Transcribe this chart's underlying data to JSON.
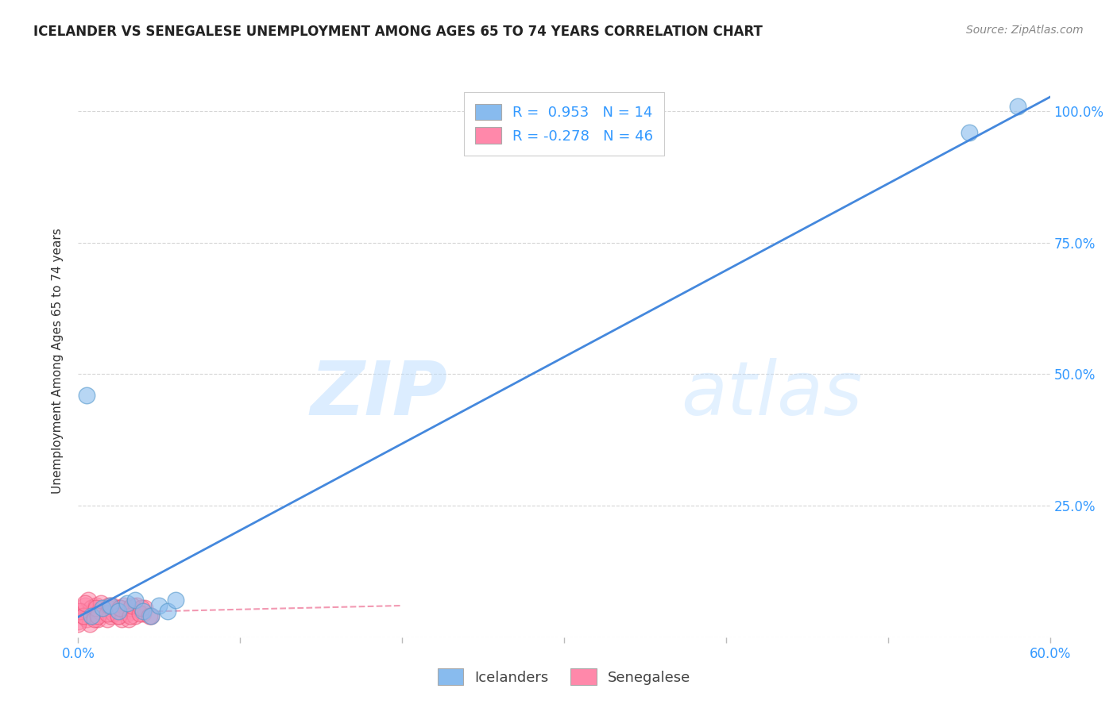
{
  "title": "ICELANDER VS SENEGALESE UNEMPLOYMENT AMONG AGES 65 TO 74 YEARS CORRELATION CHART",
  "source": "Source: ZipAtlas.com",
  "ylabel": "Unemployment Among Ages 65 to 74 years",
  "x_min": 0.0,
  "x_max": 0.6,
  "y_min": 0.0,
  "y_max": 1.05,
  "x_ticks": [
    0.0,
    0.1,
    0.2,
    0.3,
    0.4,
    0.5,
    0.6
  ],
  "x_tick_labels": [
    "0.0%",
    "",
    "",
    "",
    "",
    "",
    "60.0%"
  ],
  "y_ticks": [
    0.0,
    0.25,
    0.5,
    0.75,
    1.0
  ],
  "y_tick_labels_right": [
    "",
    "25.0%",
    "50.0%",
    "75.0%",
    "100.0%"
  ],
  "watermark_text": "ZIP",
  "watermark_text2": "atlas",
  "icelander_color": "#88BBEE",
  "icelander_edge_color": "#5599CC",
  "senegalese_color": "#FF88AA",
  "senegalese_edge_color": "#EE5577",
  "trend_icelander_color": "#4488DD",
  "trend_senegalese_color": "#EE7799",
  "R_icelander": 0.953,
  "N_icelander": 14,
  "R_senegalese": -0.278,
  "N_senegalese": 46,
  "icelander_x": [
    0.005,
    0.008,
    0.015,
    0.02,
    0.025,
    0.03,
    0.035,
    0.04,
    0.045,
    0.05,
    0.055,
    0.06,
    0.55,
    0.58
  ],
  "icelander_y": [
    0.46,
    0.04,
    0.055,
    0.06,
    0.05,
    0.065,
    0.07,
    0.05,
    0.04,
    0.06,
    0.05,
    0.07,
    0.96,
    1.01
  ],
  "senegalese_x": [
    0.0,
    0.002,
    0.003,
    0.004,
    0.005,
    0.006,
    0.007,
    0.008,
    0.01,
    0.011,
    0.012,
    0.013,
    0.014,
    0.018,
    0.019,
    0.02,
    0.021,
    0.022,
    0.025,
    0.026,
    0.027,
    0.028,
    0.03,
    0.031,
    0.032,
    0.035,
    0.036,
    0.04,
    0.041,
    0.045,
    0.0,
    0.001,
    0.003,
    0.004,
    0.01,
    0.011,
    0.012,
    0.018,
    0.019,
    0.025,
    0.026,
    0.032,
    0.033,
    0.038,
    0.039,
    0.044
  ],
  "senegalese_y": [
    0.03,
    0.05,
    0.04,
    0.06,
    0.035,
    0.07,
    0.025,
    0.055,
    0.04,
    0.06,
    0.035,
    0.05,
    0.065,
    0.035,
    0.055,
    0.04,
    0.06,
    0.045,
    0.04,
    0.055,
    0.035,
    0.06,
    0.045,
    0.035,
    0.055,
    0.04,
    0.06,
    0.045,
    0.055,
    0.04,
    0.025,
    0.05,
    0.04,
    0.065,
    0.035,
    0.055,
    0.04,
    0.045,
    0.06,
    0.04,
    0.055,
    0.04,
    0.06,
    0.045,
    0.055,
    0.04
  ],
  "legend_label_icelander": "Icelanders",
  "legend_label_senegalese": "Senegalese",
  "background_color": "#ffffff",
  "grid_color": "#cccccc",
  "title_color": "#222222",
  "axis_tick_color": "#3399FF",
  "right_axis_color": "#3399FF",
  "legend_number_color": "#3399FF",
  "legend_label_color": "#444444"
}
